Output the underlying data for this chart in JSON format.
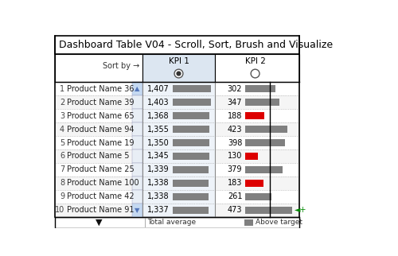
{
  "title": "Dashboard Table V04 - Scroll, Sort, Brush and Visualize",
  "rows": [
    {
      "rank": 1,
      "name": "Product Name 36",
      "kpi1": 1407,
      "kpi2": 302,
      "kpi2_above": true
    },
    {
      "rank": 2,
      "name": "Product Name 39",
      "kpi1": 1403,
      "kpi2": 347,
      "kpi2_above": true
    },
    {
      "rank": 3,
      "name": "Product Name 65",
      "kpi1": 1368,
      "kpi2": 188,
      "kpi2_above": false
    },
    {
      "rank": 4,
      "name": "Product Name 94",
      "kpi1": 1355,
      "kpi2": 423,
      "kpi2_above": true
    },
    {
      "rank": 5,
      "name": "Product Name 19",
      "kpi1": 1350,
      "kpi2": 398,
      "kpi2_above": true
    },
    {
      "rank": 6,
      "name": "Product Name 5",
      "kpi1": 1345,
      "kpi2": 130,
      "kpi2_above": false
    },
    {
      "rank": 7,
      "name": "Product Name 25",
      "kpi1": 1339,
      "kpi2": 379,
      "kpi2_above": true
    },
    {
      "rank": 8,
      "name": "Product Name 100",
      "kpi1": 1338,
      "kpi2": 183,
      "kpi2_above": false
    },
    {
      "rank": 9,
      "name": "Product Name 42",
      "kpi1": 1338,
      "kpi2": 261,
      "kpi2_above": true
    },
    {
      "rank": 10,
      "name": "Product Name 91",
      "kpi1": 1337,
      "kpi2": 473,
      "kpi2_above": true
    }
  ],
  "kpi1_max": 1407,
  "kpi2_max": 473,
  "kpi2_target": 250,
  "colors": {
    "bg": "#ffffff",
    "bar_gray": "#808080",
    "bar_red": "#dd0000",
    "outer_border": "#000000",
    "legend_gray": "#808080",
    "green_arrow": "#008800",
    "row_bg_even": "#f5f5f5",
    "row_bg_odd": "#ffffff",
    "kpi1_header_bg": "#dce6f1",
    "scrollbar_arrow": "#5577bb",
    "scrollbar_bg": "#c5d9f1"
  },
  "legend_total_avg": "Total average",
  "legend_above": "Above target",
  "sort_by_text": "Sort by →",
  "kpi1_label": "KPI 1",
  "kpi2_label": "KPI 2"
}
